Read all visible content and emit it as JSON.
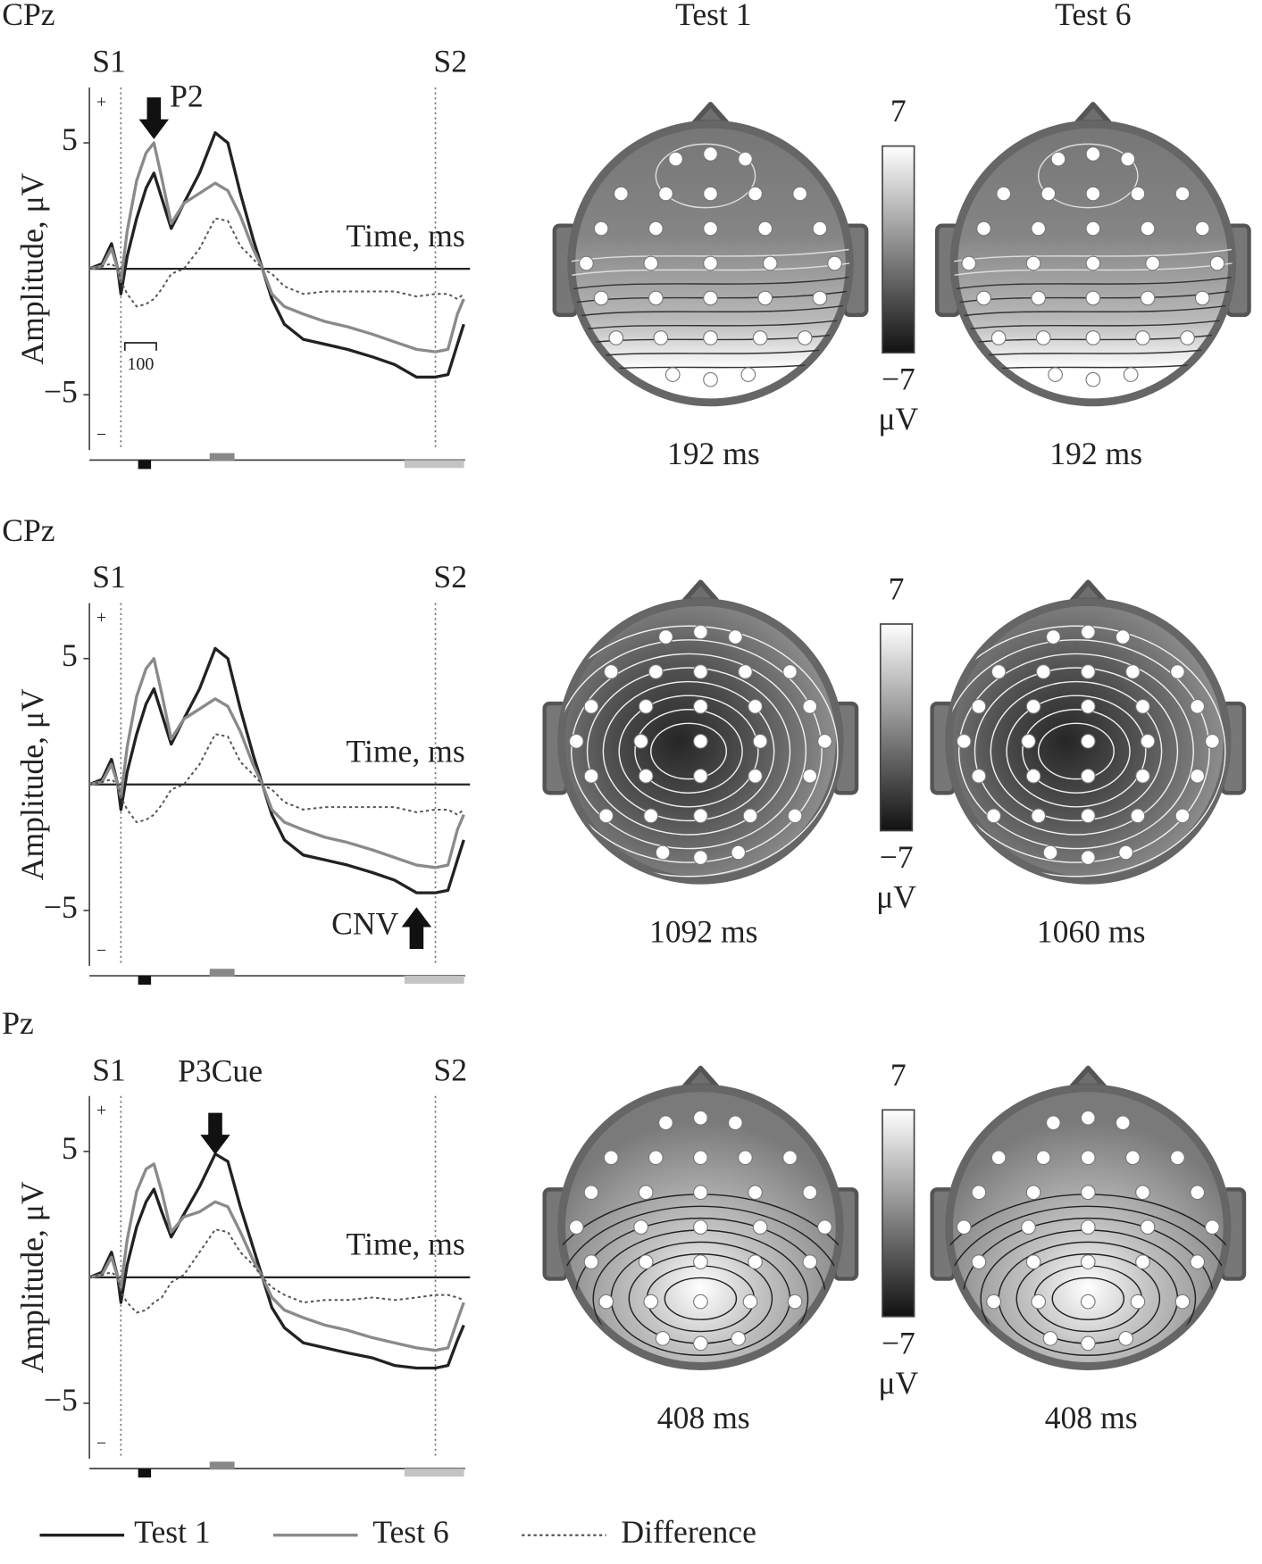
{
  "column_titles": [
    "Test 1",
    "Test 6"
  ],
  "chart_data": [
    {
      "type": "line",
      "channel": "CPz",
      "y_label": "Amplitude, μV",
      "x_label": "Time, ms",
      "events": [
        {
          "label": "S1",
          "x": 0
        },
        {
          "label": "S2",
          "x": 1000
        }
      ],
      "polarity_labels": [
        "+",
        "−"
      ],
      "annotation": {
        "text": "P2",
        "x": 105,
        "direction": "down"
      },
      "scale_bar": 100,
      "xlim": [
        -100,
        1110
      ],
      "ylim": [
        -7.2,
        7.2
      ],
      "yticks": [
        5,
        {
          "value": -5,
          "label": "−5"
        }
      ],
      "x": [
        -100,
        -60,
        -30,
        -10,
        0,
        20,
        50,
        80,
        105,
        130,
        160,
        200,
        250,
        300,
        340,
        380,
        420,
        450,
        480,
        520,
        580,
        650,
        720,
        800,
        870,
        940,
        1000,
        1040,
        1070,
        1090
      ],
      "series": [
        {
          "name": "Test 1",
          "color": "#222222",
          "style": "solid",
          "values": [
            0,
            0.2,
            1.0,
            0,
            -1.0,
            0.5,
            2.0,
            3.2,
            3.8,
            2.8,
            1.6,
            2.6,
            3.8,
            5.4,
            5.0,
            3.0,
            1.2,
            0,
            -1.2,
            -2.2,
            -2.8,
            -3.0,
            -3.2,
            -3.5,
            -3.8,
            -4.3,
            -4.3,
            -4.2,
            -3.0,
            -2.2
          ]
        },
        {
          "name": "Test 6",
          "color": "#8a8a8a",
          "style": "solid",
          "values": [
            0,
            0.1,
            0.8,
            0,
            -0.5,
            1.5,
            3.5,
            4.6,
            5.0,
            3.6,
            1.8,
            2.6,
            3.0,
            3.4,
            3.1,
            2.1,
            0.8,
            0,
            -1.0,
            -1.5,
            -1.8,
            -2.1,
            -2.3,
            -2.6,
            -2.9,
            -3.2,
            -3.3,
            -3.2,
            -1.8,
            -1.2
          ]
        },
        {
          "name": "Difference",
          "color": "#555555",
          "style": "dotted",
          "values": [
            0,
            0.1,
            0.2,
            0,
            -0.5,
            -1.0,
            -1.5,
            -1.4,
            -1.2,
            -0.8,
            -0.2,
            0,
            0.8,
            2.0,
            1.9,
            0.9,
            0.4,
            0,
            -0.2,
            -0.7,
            -1.0,
            -0.9,
            -0.9,
            -0.9,
            -0.9,
            -1.1,
            -1.0,
            -1.0,
            -1.2,
            -1.0
          ]
        }
      ],
      "maps": [
        "192 ms",
        "192 ms"
      ],
      "colorbar": {
        "ticks": [
          7,
          {
            "value": -7,
            "label": "−7"
          }
        ],
        "unit": "μV"
      }
    },
    {
      "type": "line",
      "channel": "CPz",
      "y_label": "Amplitude, μV",
      "x_label": "Time, ms",
      "events": [
        {
          "label": "S1",
          "x": 0
        },
        {
          "label": "S2",
          "x": 1000
        }
      ],
      "polarity_labels": [
        "+",
        "−"
      ],
      "annotation": {
        "text": "CNV",
        "x": 940,
        "direction": "up"
      },
      "xlim": [
        -100,
        1110
      ],
      "ylim": [
        -7.2,
        7.2
      ],
      "yticks": [
        5,
        {
          "value": -5,
          "label": "−5"
        }
      ],
      "x": [
        -100,
        -60,
        -30,
        -10,
        0,
        20,
        50,
        80,
        105,
        130,
        160,
        200,
        250,
        300,
        340,
        380,
        420,
        450,
        480,
        520,
        580,
        650,
        720,
        800,
        870,
        940,
        1000,
        1040,
        1070,
        1090
      ],
      "series": [
        {
          "name": "Test 1",
          "color": "#222222",
          "style": "solid",
          "values": [
            0,
            0.2,
            1.0,
            0,
            -1.0,
            0.5,
            2.0,
            3.2,
            3.8,
            2.8,
            1.6,
            2.6,
            3.8,
            5.4,
            5.0,
            3.0,
            1.2,
            0,
            -1.2,
            -2.2,
            -2.8,
            -3.0,
            -3.2,
            -3.5,
            -3.8,
            -4.3,
            -4.3,
            -4.2,
            -3.0,
            -2.2
          ]
        },
        {
          "name": "Test 6",
          "color": "#8a8a8a",
          "style": "solid",
          "values": [
            0,
            0.1,
            0.8,
            0,
            -0.5,
            1.5,
            3.5,
            4.6,
            5.0,
            3.6,
            1.8,
            2.6,
            3.0,
            3.4,
            3.1,
            2.1,
            0.8,
            0,
            -1.0,
            -1.5,
            -1.8,
            -2.1,
            -2.3,
            -2.6,
            -2.9,
            -3.2,
            -3.3,
            -3.2,
            -1.8,
            -1.2
          ]
        },
        {
          "name": "Difference",
          "color": "#555555",
          "style": "dotted",
          "values": [
            0,
            0.1,
            0.2,
            0,
            -0.5,
            -1.0,
            -1.5,
            -1.4,
            -1.2,
            -0.8,
            -0.2,
            0,
            0.8,
            2.0,
            1.9,
            0.9,
            0.4,
            0,
            -0.2,
            -0.7,
            -1.0,
            -0.9,
            -0.9,
            -0.9,
            -0.9,
            -1.1,
            -1.0,
            -1.0,
            -1.2,
            -1.0
          ]
        }
      ],
      "maps": [
        "1092 ms",
        "1060 ms"
      ],
      "colorbar": {
        "ticks": [
          7,
          {
            "value": -7,
            "label": "−7"
          }
        ],
        "unit": "μV"
      }
    },
    {
      "type": "line",
      "channel": "Pz",
      "y_label": "Amplitude, μV",
      "x_label": "Time, ms",
      "events": [
        {
          "label": "S1",
          "x": 0
        },
        {
          "label": "S2",
          "x": 1000
        }
      ],
      "polarity_labels": [
        "+",
        "−"
      ],
      "annotation": {
        "text": "P3Cue",
        "x": 300,
        "direction": "down"
      },
      "xlim": [
        -100,
        1110
      ],
      "ylim": [
        -7.2,
        7.2
      ],
      "yticks": [
        5,
        {
          "value": -5,
          "label": "−5"
        }
      ],
      "x": [
        -100,
        -60,
        -30,
        -10,
        0,
        20,
        50,
        80,
        105,
        130,
        160,
        200,
        250,
        300,
        340,
        380,
        420,
        450,
        480,
        520,
        580,
        650,
        720,
        800,
        870,
        940,
        1000,
        1040,
        1070,
        1090
      ],
      "series": [
        {
          "name": "Test 1",
          "color": "#222222",
          "style": "solid",
          "values": [
            0,
            0.2,
            1.0,
            0,
            -1.0,
            0.5,
            2.0,
            3.0,
            3.5,
            2.6,
            1.6,
            2.5,
            3.6,
            4.9,
            4.6,
            2.8,
            1.2,
            0,
            -1.2,
            -2.0,
            -2.6,
            -2.8,
            -3.0,
            -3.2,
            -3.5,
            -3.6,
            -3.6,
            -3.5,
            -2.5,
            -1.9
          ]
        },
        {
          "name": "Test 6",
          "color": "#8a8a8a",
          "style": "solid",
          "values": [
            0,
            0.1,
            0.8,
            0,
            -0.4,
            1.5,
            3.4,
            4.3,
            4.5,
            3.4,
            1.8,
            2.4,
            2.6,
            3.0,
            2.8,
            1.8,
            0.7,
            0,
            -0.8,
            -1.3,
            -1.6,
            -1.9,
            -2.1,
            -2.4,
            -2.6,
            -2.8,
            -2.9,
            -2.8,
            -1.7,
            -1.0
          ]
        },
        {
          "name": "Difference",
          "color": "#555555",
          "style": "dotted",
          "values": [
            0,
            0.1,
            0.2,
            0,
            -0.6,
            -1.0,
            -1.4,
            -1.3,
            -1.0,
            -0.8,
            -0.2,
            0.1,
            1.0,
            1.9,
            1.8,
            1.0,
            0.5,
            0,
            -0.4,
            -0.7,
            -1.0,
            -0.9,
            -0.9,
            -0.8,
            -0.9,
            -0.8,
            -0.7,
            -0.7,
            -0.8,
            -0.9
          ]
        }
      ],
      "maps": [
        "408 ms",
        "408 ms"
      ],
      "colorbar": {
        "ticks": [
          7,
          {
            "value": -7,
            "label": "−7"
          }
        ],
        "unit": "μV"
      }
    }
  ]
}
